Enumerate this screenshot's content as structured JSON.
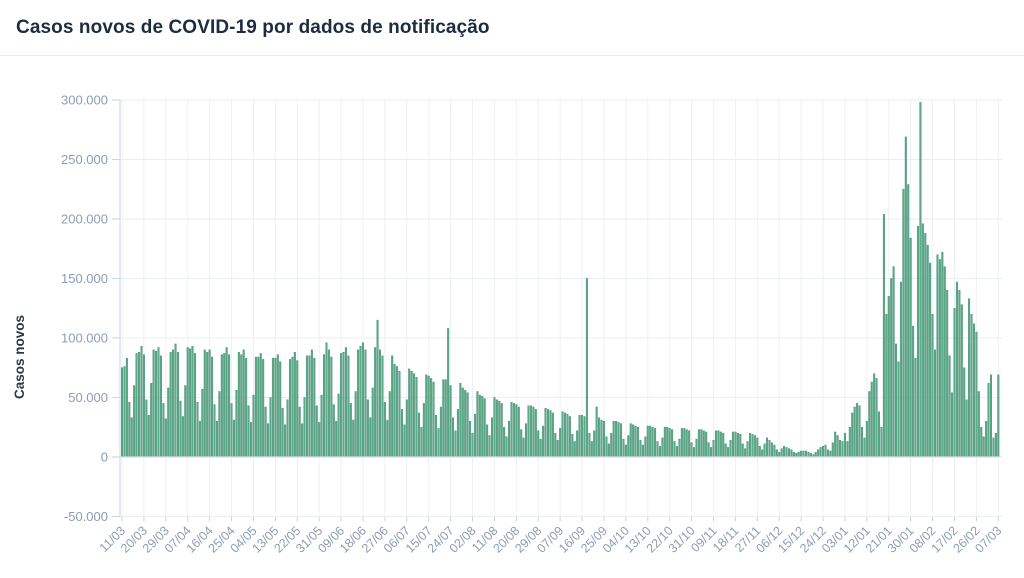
{
  "header": {
    "title": "Casos novos de COVID-19 por dados de notificação"
  },
  "chart_data": {
    "type": "bar",
    "title": "Casos novos de COVID-19 por dados de notificação",
    "xlabel": "",
    "ylabel": "Casos novos",
    "ylim": [
      -50000,
      300000
    ],
    "grid": true,
    "legend": "none",
    "date_range_shown": "11/03 – 07/03",
    "y_tick_values": [
      300000,
      250000,
      200000,
      150000,
      100000,
      50000,
      0,
      -50000
    ],
    "y_tick_labels": [
      "300.000",
      "250.000",
      "200.000",
      "150.000",
      "100.000",
      "50.000",
      "0",
      "-50.000"
    ],
    "x_tick_every_n_bars": 9,
    "x_tick_labels": [
      "11/03",
      "20/03",
      "29/03",
      "07/04",
      "16/04",
      "25/04",
      "04/05",
      "13/05",
      "22/05",
      "31/05",
      "09/06",
      "18/06",
      "27/06",
      "06/07",
      "15/07",
      "24/07",
      "02/08",
      "11/08",
      "20/08",
      "29/08",
      "07/09",
      "16/09",
      "25/09",
      "04/10",
      "13/10",
      "22/10",
      "31/10",
      "09/11",
      "18/11",
      "27/11",
      "06/12",
      "15/12",
      "24/12",
      "03/01",
      "12/01",
      "21/01",
      "30/01",
      "08/02",
      "17/02",
      "26/02",
      "07/03"
    ],
    "values": [
      75000,
      76000,
      83000,
      46000,
      33000,
      60000,
      87000,
      88000,
      93000,
      86000,
      48000,
      35000,
      62000,
      90000,
      89000,
      92000,
      85000,
      45000,
      32000,
      58000,
      88000,
      90000,
      95000,
      88000,
      47000,
      34000,
      60000,
      92000,
      91000,
      93000,
      87000,
      46000,
      30000,
      57000,
      90000,
      88000,
      90000,
      84000,
      44000,
      30000,
      55000,
      86000,
      87000,
      92000,
      86000,
      45000,
      31000,
      56000,
      88000,
      86000,
      90000,
      83000,
      43000,
      29000,
      52000,
      84000,
      84000,
      87000,
      82000,
      42000,
      28000,
      50000,
      83000,
      83000,
      86000,
      80000,
      41000,
      27000,
      48000,
      82000,
      84000,
      88000,
      81000,
      42000,
      28000,
      50000,
      85000,
      85000,
      90000,
      83000,
      43000,
      29000,
      52000,
      86000,
      96000,
      90000,
      84000,
      44000,
      30000,
      53000,
      87000,
      88000,
      92000,
      85000,
      45000,
      31000,
      55000,
      90000,
      93000,
      96000,
      90000,
      48000,
      33000,
      58000,
      92000,
      115000,
      90000,
      85000,
      46000,
      31000,
      55000,
      85000,
      78000,
      76000,
      72000,
      40000,
      27000,
      48000,
      74000,
      72000,
      70000,
      67000,
      37000,
      25000,
      45000,
      69000,
      68000,
      66000,
      63000,
      35000,
      24000,
      42000,
      65000,
      65000,
      108000,
      60000,
      33000,
      22000,
      40000,
      62000,
      58000,
      56000,
      54000,
      30000,
      20000,
      36000,
      55000,
      52000,
      51000,
      49000,
      27000,
      18000,
      33000,
      50000,
      48000,
      47000,
      45000,
      25000,
      17000,
      30000,
      46000,
      45000,
      44000,
      42000,
      23000,
      16000,
      28000,
      43000,
      43000,
      42000,
      40000,
      22000,
      15000,
      26000,
      41000,
      40000,
      39000,
      37000,
      20000,
      14000,
      24000,
      38000,
      37000,
      36000,
      34000,
      19000,
      13000,
      22000,
      35000,
      35000,
      34000,
      150000,
      20000,
      13000,
      22000,
      42000,
      33000,
      31000,
      30000,
      17000,
      11000,
      20000,
      30000,
      30000,
      29000,
      28000,
      15000,
      10000,
      18000,
      28000,
      27000,
      26000,
      25000,
      14000,
      10000,
      17000,
      26000,
      26000,
      25000,
      24000,
      13000,
      9000,
      16000,
      25000,
      25000,
      24000,
      23000,
      13000,
      9000,
      15000,
      24000,
      24000,
      23000,
      22000,
      12000,
      8000,
      15000,
      23000,
      23000,
      22000,
      21000,
      12000,
      8000,
      14000,
      22000,
      22000,
      21000,
      20000,
      11000,
      8000,
      14000,
      21000,
      21000,
      20000,
      19000,
      11000,
      7000,
      13000,
      20000,
      19000,
      18000,
      16000,
      9000,
      6000,
      11000,
      16000,
      14000,
      12000,
      10000,
      6000,
      4000,
      7000,
      9000,
      8000,
      7000,
      6000,
      4000,
      3000,
      4000,
      5000,
      5000,
      5000,
      4000,
      3000,
      2000,
      4000,
      6000,
      8000,
      9000,
      10000,
      6000,
      5000,
      12000,
      21000,
      18000,
      14000,
      13000,
      20000,
      13000,
      25000,
      37000,
      42000,
      45000,
      43000,
      25000,
      16000,
      30000,
      55000,
      63000,
      70000,
      66000,
      38000,
      25000,
      204000,
      120000,
      135000,
      150000,
      160000,
      95000,
      80000,
      147000,
      225000,
      269000,
      229000,
      184000,
      110000,
      83000,
      194000,
      298000,
      196000,
      188000,
      178000,
      163000,
      120000,
      90000,
      170000,
      166000,
      172000,
      160000,
      140000,
      85000,
      54000,
      125000,
      147000,
      140000,
      128000,
      75000,
      48000,
      133000,
      120000,
      112000,
      105000,
      55000,
      25000,
      17000,
      30000,
      62000,
      69000,
      16000,
      20000,
      69000
    ],
    "colors": {
      "bar_fill": "#5fa98b",
      "bar_border": "#3e8e6e",
      "grid_h": "#e9eef5",
      "grid_v": "#edf1f7",
      "tick": "#c9d3e1",
      "axis_line": "#cdd6e2",
      "zero_line": "#d7dde7",
      "axis_text": "#8d9db4",
      "axis_title_text": "#2c3845",
      "title_text": "#1d2c40",
      "separator": "#e8ecf1"
    }
  }
}
